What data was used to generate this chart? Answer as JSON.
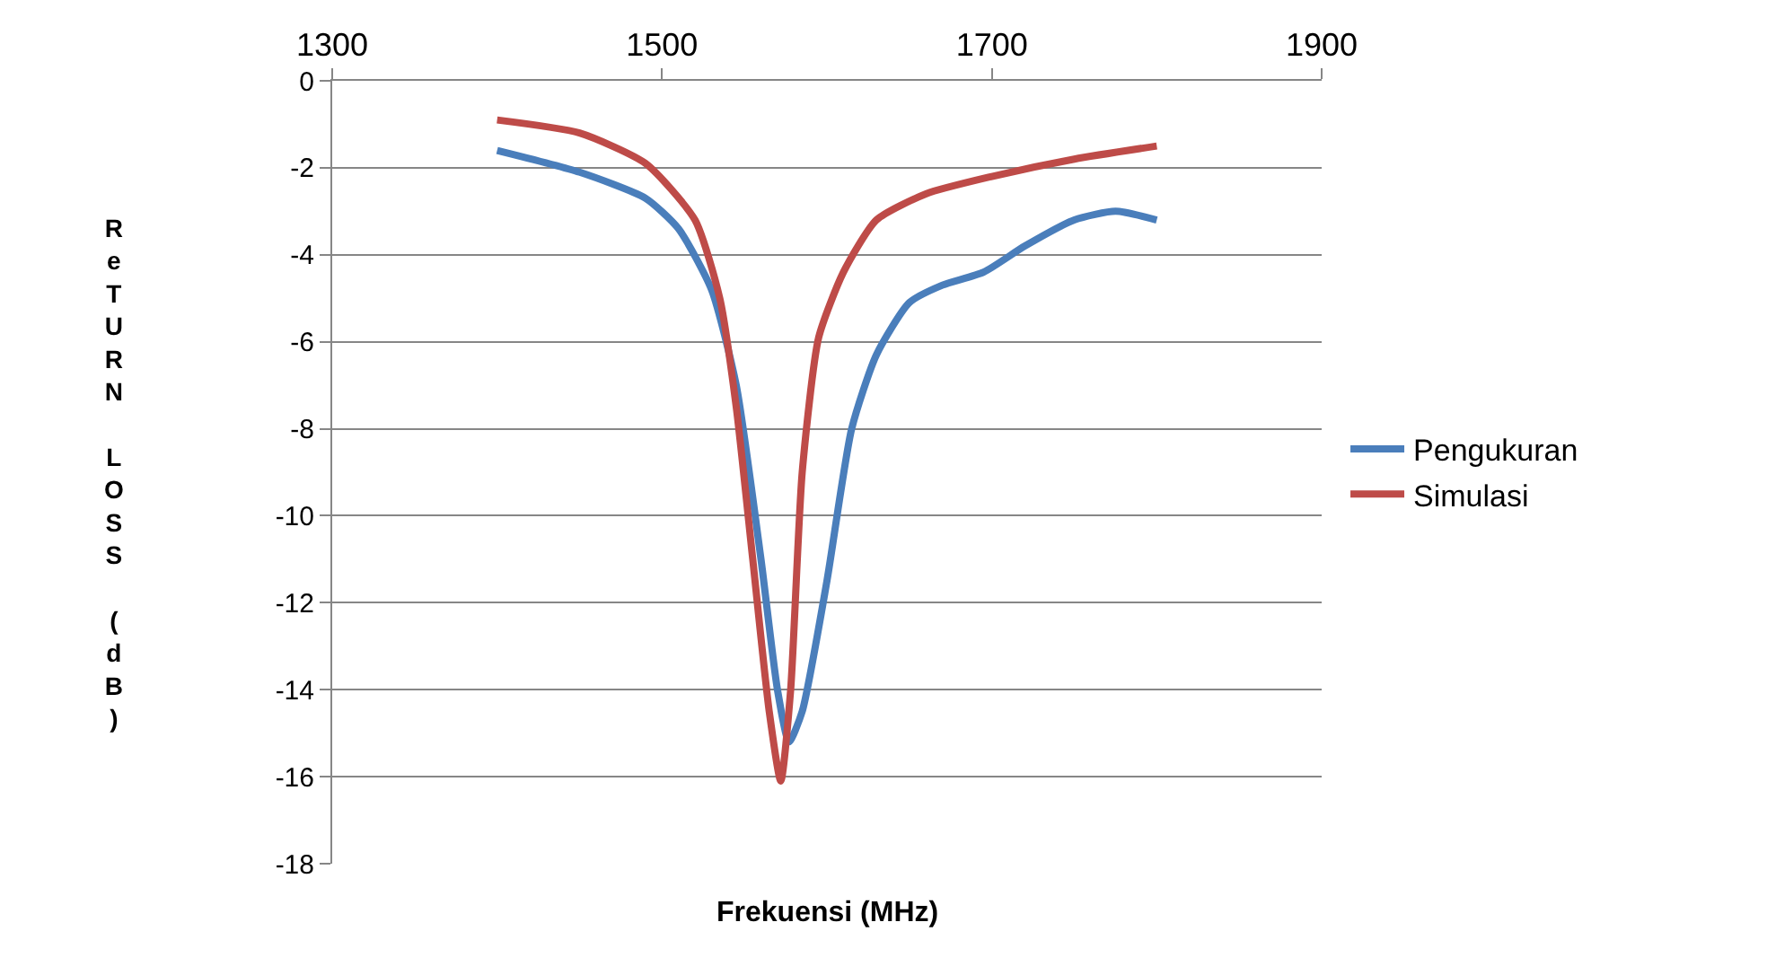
{
  "chart_data": {
    "type": "line",
    "xlabel": "Frekuensi (MHz)",
    "ylabel": "ReTURN LOSS (dB)",
    "xlim": [
      1300,
      1900
    ],
    "xticks": [
      1300,
      1500,
      1700,
      1900
    ],
    "ylim": [
      -18,
      0
    ],
    "yticks": [
      0,
      -2,
      -4,
      -6,
      -8,
      -10,
      -12,
      -14,
      -16,
      -18
    ],
    "grid": "y",
    "legend": "right",
    "marker": "none",
    "line_style": "solid",
    "series": [
      {
        "name": "Pengukuran",
        "color": "#4a7ebb",
        "x": [
          1400,
          1450,
          1490,
          1510,
          1530,
          1545,
          1560,
          1570,
          1577,
          1585,
          1600,
          1615,
          1630,
          1650,
          1670,
          1695,
          1720,
          1750,
          1775,
          1800
        ],
        "values": [
          -1.6,
          -2.1,
          -2.7,
          -3.4,
          -4.8,
          -7,
          -11,
          -14,
          -15.2,
          -14.5,
          -11.5,
          -8,
          -6.3,
          -5.1,
          -4.7,
          -4.4,
          -3.8,
          -3.2,
          -3.0,
          -3.2
        ]
      },
      {
        "name": "Simulasi",
        "color": "#be4b48",
        "x": [
          1400,
          1450,
          1490,
          1520,
          1535,
          1545,
          1555,
          1565,
          1572,
          1578,
          1585,
          1595,
          1610,
          1630,
          1660,
          1700,
          1750,
          1800
        ],
        "values": [
          -0.9,
          -1.2,
          -1.9,
          -3.2,
          -5,
          -7.5,
          -11,
          -14.5,
          -16.1,
          -14,
          -9,
          -5.9,
          -4.4,
          -3.2,
          -2.6,
          -2.2,
          -1.8,
          -1.5
        ]
      }
    ]
  }
}
